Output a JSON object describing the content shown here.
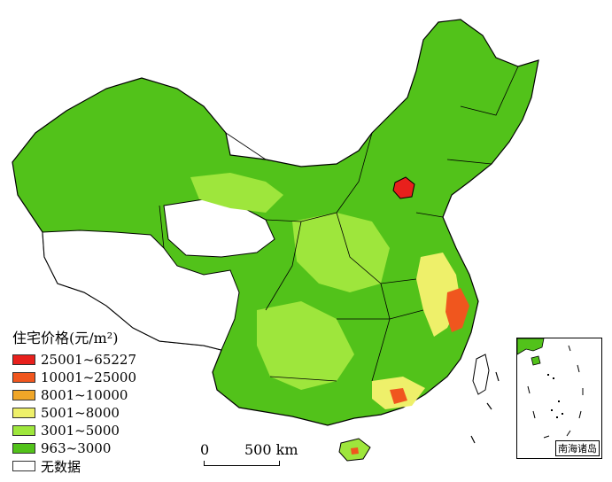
{
  "legend": {
    "title": "住宅价格(元/m²)",
    "items": [
      {
        "label": "25001~65227",
        "color": "#e8201c"
      },
      {
        "label": "10001~25000",
        "color": "#f0561e"
      },
      {
        "label": "8001~10000",
        "color": "#f0a628"
      },
      {
        "label": "5001~8000",
        "color": "#eef06a"
      },
      {
        "label": "3001~5000",
        "color": "#9ee63c"
      },
      {
        "label": "963~3000",
        "color": "#52c21a"
      },
      {
        "label": "无数据",
        "color": "#ffffff"
      }
    ]
  },
  "scale_bar": {
    "zero": "0",
    "distance": "500 km"
  },
  "inset": {
    "label": "南海诸岛"
  },
  "colors": {
    "border": "#000000",
    "land": "#52c21a",
    "nodata": "#ffffff"
  }
}
